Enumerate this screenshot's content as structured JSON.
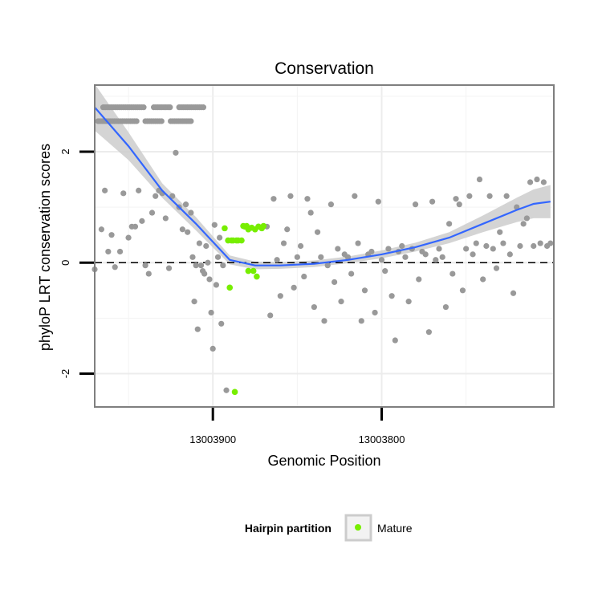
{
  "chart_data": {
    "type": "scatter",
    "title": "Conservation",
    "xlabel": "Genomic Position",
    "ylabel": "phyloP LRT conservation scores",
    "x_reversed": true,
    "xlim": [
      13003970,
      13003698
    ],
    "ylim": [
      -2.6,
      3.2
    ],
    "x_ticks": [
      13003900,
      13003800
    ],
    "x_tick_labels": [
      "13003900",
      "13003800"
    ],
    "y_ticks": [
      -2,
      0,
      2
    ],
    "y_tick_labels": [
      "-2",
      "0",
      "2"
    ],
    "reference_line": {
      "y": 0,
      "style": "dashed",
      "color": "#000000"
    },
    "grid": true,
    "colors": {
      "other": "#999999",
      "mature": "#77ee00",
      "smooth_line": "#3366ff",
      "confidence_band": "#cccccc",
      "panel_border": "#7f7f7f"
    },
    "legend": {
      "title": "Hairpin partition",
      "position": "bottom",
      "entries": [
        {
          "label": "Mature",
          "color": "#77ee00"
        }
      ]
    },
    "smooth": {
      "x": [
        13003970,
        13003950,
        13003930,
        13003910,
        13003890,
        13003875,
        13003860,
        13003840,
        13003820,
        13003800,
        13003780,
        13003760,
        13003740,
        13003720,
        13003710,
        13003700
      ],
      "y": [
        2.8,
        2.1,
        1.3,
        0.7,
        0.05,
        -0.05,
        -0.05,
        -0.02,
        0.05,
        0.15,
        0.28,
        0.45,
        0.7,
        0.95,
        1.06,
        1.1
      ],
      "band_halfwidth": [
        0.42,
        0.25,
        0.13,
        0.12,
        0.08,
        0.07,
        0.06,
        0.06,
        0.06,
        0.07,
        0.08,
        0.1,
        0.15,
        0.22,
        0.26,
        0.3
      ]
    },
    "series": [
      {
        "name": "Mature",
        "color": "#77ee00",
        "x": [
          13003893,
          13003891,
          13003889,
          13003888,
          13003886,
          13003885,
          13003883,
          13003882,
          13003881,
          13003880,
          13003879,
          13003877,
          13003875,
          13003873,
          13003871,
          13003870,
          13003879,
          13003876,
          13003874,
          13003890,
          13003887
        ],
        "y": [
          0.62,
          0.4,
          0.4,
          0.4,
          0.4,
          0.4,
          0.4,
          0.66,
          0.65,
          0.66,
          0.6,
          0.63,
          0.6,
          0.65,
          0.62,
          0.66,
          -0.15,
          -0.15,
          -0.25,
          -0.45,
          -2.33
        ]
      },
      {
        "name": "Other",
        "color": "#999999",
        "x": [
          13003970,
          13003964,
          13003962,
          13003958,
          13003953,
          13003948,
          13003944,
          13003940,
          13003938,
          13003934,
          13003930,
          13003926,
          13003922,
          13003918,
          13003915,
          13003912,
          13003911,
          13003909,
          13003907,
          13003905,
          13003904,
          13003902,
          13003901,
          13003900,
          13003898,
          13003896,
          13003895,
          13003894,
          13003899,
          13003897,
          13003903,
          13003906,
          13003908,
          13003910,
          13003913,
          13003916,
          13003920,
          13003924,
          13003928,
          13003932,
          13003936,
          13003942,
          13003946,
          13003950,
          13003955,
          13003960,
          13003966,
          13003892,
          13003868,
          13003866,
          13003864,
          13003862,
          13003860,
          13003858,
          13003856,
          13003854,
          13003852,
          13003850,
          13003848,
          13003846,
          13003844,
          13003842,
          13003840,
          13003838,
          13003836,
          13003834,
          13003832,
          13003830,
          13003828,
          13003826,
          13003824,
          13003822,
          13003820,
          13003818,
          13003816,
          13003814,
          13003812,
          13003810,
          13003808,
          13003806,
          13003804,
          13003802,
          13003800,
          13003798,
          13003796,
          13003794,
          13003792,
          13003790,
          13003788,
          13003786,
          13003784,
          13003782,
          13003780,
          13003778,
          13003776,
          13003774,
          13003772,
          13003770,
          13003768,
          13003766,
          13003764,
          13003762,
          13003760,
          13003758,
          13003756,
          13003754,
          13003752,
          13003750,
          13003748,
          13003746,
          13003744,
          13003742,
          13003740,
          13003738,
          13003736,
          13003734,
          13003732,
          13003730,
          13003728,
          13003726,
          13003724,
          13003722,
          13003720,
          13003718,
          13003716,
          13003714,
          13003712,
          13003710,
          13003708,
          13003706,
          13003704,
          13003702,
          13003700
        ],
        "y": [
          -0.12,
          1.3,
          0.2,
          -0.08,
          1.25,
          0.65,
          1.3,
          -0.05,
          -0.2,
          1.2,
          1.25,
          -0.1,
          1.98,
          0.6,
          0.55,
          0.1,
          -0.7,
          -1.2,
          -0.05,
          -0.2,
          0.3,
          -0.3,
          -0.9,
          -1.55,
          -0.4,
          0.45,
          -1.1,
          -0.05,
          0.68,
          0.1,
          0.0,
          -0.15,
          0.35,
          -0.05,
          0.9,
          1.05,
          1.0,
          1.2,
          0.8,
          1.3,
          0.9,
          0.75,
          0.65,
          0.45,
          0.2,
          0.5,
          0.6,
          -2.3,
          0.65,
          -0.95,
          1.15,
          0.05,
          -0.6,
          0.35,
          0.6,
          1.2,
          -0.45,
          0.1,
          0.3,
          -0.25,
          1.15,
          0.9,
          -0.8,
          0.55,
          0.1,
          -1.05,
          -0.05,
          1.05,
          -0.35,
          0.25,
          -0.7,
          0.15,
          0.1,
          -0.2,
          1.2,
          0.35,
          -1.05,
          -0.5,
          0.15,
          0.2,
          -0.9,
          1.1,
          0.05,
          -0.15,
          0.25,
          -0.6,
          -1.4,
          0.2,
          0.3,
          0.1,
          -0.7,
          0.25,
          1.05,
          -0.3,
          0.2,
          0.15,
          -1.25,
          1.1,
          0.05,
          0.25,
          0.1,
          -0.8,
          0.7,
          -0.2,
          1.15,
          1.05,
          -0.5,
          0.25,
          1.2,
          0.15,
          0.35,
          1.5,
          -0.3,
          0.3,
          1.2,
          0.25,
          -0.1,
          0.55,
          0.35,
          1.2,
          0.15,
          -0.55,
          1.0,
          0.3,
          0.7,
          0.8,
          1.45,
          0.3,
          1.5,
          0.35,
          1.45,
          0.3,
          0.35
        ],
        "dense_band_upper": {
          "y": 2.8,
          "x_ranges": [
            [
              13003965,
              13003940
            ],
            [
              13003935,
              13003925
            ],
            [
              13003920,
              13003905
            ]
          ]
        },
        "dense_band_lower": {
          "y": 2.55,
          "x_ranges": [
            [
              13003968,
              13003945
            ],
            [
              13003940,
              13003930
            ],
            [
              13003925,
              13003912
            ]
          ]
        }
      }
    ]
  }
}
